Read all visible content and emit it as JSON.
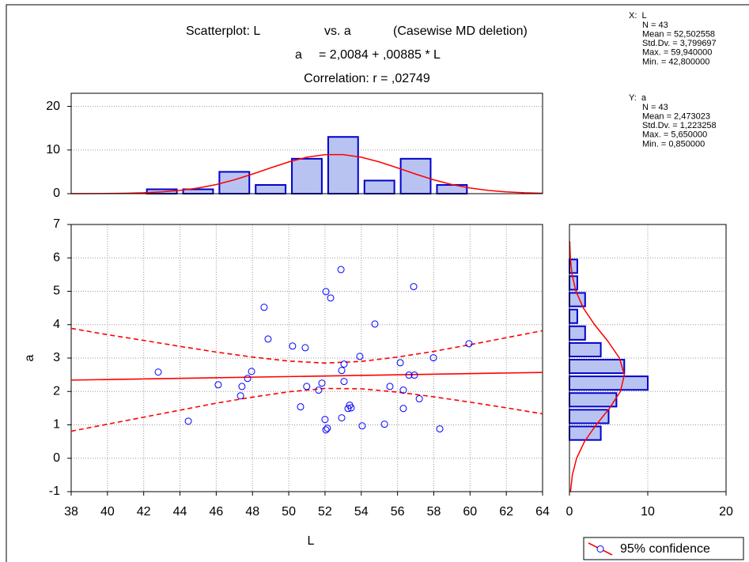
{
  "chart_data": [
    {
      "type": "scatter",
      "title_parts": [
        "Scatterplot: L",
        "vs. a",
        "(Casewise MD deletion)"
      ],
      "equation_parts": [
        "a",
        "= 2,0084 + ,00885 * L"
      ],
      "correlation": "Correlation: r = ,02749",
      "x_label": "L",
      "y_label": "a",
      "x": [
        42.8,
        44.46,
        46.11,
        47.42,
        47.34,
        47.73,
        47.95,
        48.64,
        48.86,
        50.21,
        50.91,
        50.99,
        50.65,
        51.65,
        51.83,
        52.05,
        52.31,
        52.0,
        52.05,
        52.13,
        52.88,
        52.92,
        53.05,
        53.05,
        52.92,
        53.36,
        53.27,
        53.44,
        53.92,
        54.05,
        54.75,
        55.28,
        55.58,
        56.15,
        56.32,
        56.32,
        56.63,
        56.93,
        56.89,
        57.2,
        57.98,
        58.33,
        59.94
      ],
      "y": [
        2.58,
        1.11,
        2.2,
        2.15,
        1.87,
        2.39,
        2.6,
        4.52,
        3.57,
        3.36,
        3.31,
        2.15,
        1.54,
        2.04,
        2.25,
        4.99,
        4.8,
        1.16,
        0.85,
        0.9,
        5.65,
        2.63,
        2.82,
        2.3,
        1.21,
        1.59,
        1.49,
        1.51,
        3.05,
        0.97,
        4.02,
        1.02,
        2.15,
        2.86,
        2.04,
        1.49,
        2.49,
        2.49,
        5.14,
        1.78,
        3.01,
        0.88,
        3.43
      ],
      "color": "#0000ff",
      "xlim": [
        38,
        64
      ],
      "ylim": [
        -1,
        7
      ],
      "xticks": [
        38,
        40,
        42,
        44,
        46,
        48,
        50,
        52,
        54,
        56,
        58,
        60,
        62,
        64
      ],
      "yticks": [
        -1,
        0,
        1,
        2,
        3,
        4,
        5,
        6,
        7
      ],
      "grid": true,
      "fit_line": {
        "x": [
          38,
          64
        ],
        "y": [
          2.34,
          2.57
        ],
        "color": "#ff0000"
      },
      "confidence": {
        "name": "95% confidence",
        "color": "#ff0000",
        "x": [
          38,
          40,
          42,
          44,
          46,
          48,
          50,
          52,
          54,
          56,
          58,
          60,
          62,
          64
        ],
        "upper": [
          3.89,
          3.7,
          3.53,
          3.35,
          3.18,
          3.03,
          2.91,
          2.85,
          2.9,
          3.03,
          3.2,
          3.4,
          3.61,
          3.82
        ],
        "lower": [
          0.81,
          1.02,
          1.23,
          1.44,
          1.65,
          1.83,
          1.99,
          2.09,
          2.08,
          1.98,
          1.84,
          1.68,
          1.51,
          1.33
        ]
      },
      "legend": "bottom-right",
      "stats": [
        {
          "heading": "X:  L",
          "lines": [
            "N = 43",
            "Mean = 52,502558",
            "Std.Dv. = 3,799697",
            "Max. = 59,940000",
            "Min. = 42,800000"
          ]
        },
        {
          "heading": "Y:  a",
          "lines": [
            "N = 43",
            "Mean = 2,473023",
            "Std.Dv. = 1,223258",
            "Max. = 5,650000",
            "Min. = 0,850000"
          ]
        }
      ]
    },
    {
      "type": "histogram",
      "bins": [
        42,
        44,
        46,
        48,
        50,
        52,
        54,
        56,
        58,
        60
      ],
      "counts": [
        1,
        1,
        5,
        2,
        8,
        13,
        3,
        8,
        2
      ],
      "color": "#b9c3f2",
      "edge_color": "#0000cc",
      "xlim": [
        38,
        64
      ],
      "ylim": [
        0,
        23
      ],
      "yticks": [
        0,
        10,
        20
      ],
      "grid": true,
      "curve": {
        "color": "#ff0000",
        "x": [
          38,
          39,
          40,
          41,
          42,
          43,
          44,
          45,
          46,
          47,
          48,
          49,
          50,
          51,
          52,
          53,
          54,
          55,
          56,
          57,
          58,
          59,
          60,
          61,
          62,
          63,
          64
        ],
        "y": [
          0.01,
          0.02,
          0.04,
          0.09,
          0.2,
          0.4,
          0.74,
          1.29,
          2.09,
          3.17,
          4.48,
          5.91,
          7.27,
          8.35,
          8.95,
          8.95,
          8.35,
          7.27,
          5.91,
          4.48,
          3.17,
          2.09,
          1.29,
          0.74,
          0.4,
          0.2,
          0.09
        ]
      }
    },
    {
      "type": "histogram-horizontal",
      "bins": [
        0.5,
        1,
        1.5,
        2,
        2.5,
        3,
        3.5,
        4,
        4.5,
        5,
        5.5,
        6
      ],
      "counts": [
        4,
        5,
        6,
        10,
        7,
        4,
        2,
        1,
        2,
        1,
        1
      ],
      "color": "#b9c3f2",
      "edge_color": "#0000cc",
      "xlim": [
        0,
        20
      ],
      "xticks": [
        0,
        10,
        20
      ],
      "ylim": [
        -1,
        7
      ],
      "yticks": [
        -1,
        0,
        1,
        2,
        3,
        4,
        5,
        6,
        7
      ],
      "grid": true,
      "curve": {
        "color": "#ff0000",
        "x": [
          0.13,
          0.37,
          0.91,
          1.92,
          3.41,
          5.12,
          6.51,
          7.01,
          6.38,
          4.92,
          3.21,
          1.77,
          0.83,
          0.33,
          0.11,
          0.03
        ],
        "y": [
          -1,
          -0.5,
          0,
          0.5,
          1,
          1.5,
          2,
          2.5,
          3,
          3.5,
          4,
          4.5,
          5,
          5.5,
          6,
          6.5
        ]
      }
    }
  ]
}
